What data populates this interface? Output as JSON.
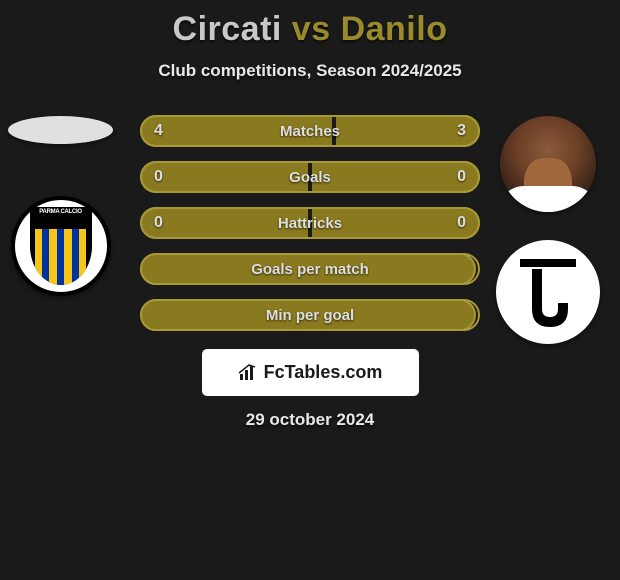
{
  "title": {
    "player1": "Circati",
    "vs": "vs",
    "player2": "Danilo",
    "player1_color": "#c8c8c8",
    "accent_color": "#9a8a2a"
  },
  "subtitle": "Club competitions, Season 2024/2025",
  "date": "29 october 2024",
  "watermark": "FcTables.com",
  "colors": {
    "background": "#1a1a1a",
    "bar_fill": "#8a7a1f",
    "bar_border": "#a89936",
    "text": "#dedede"
  },
  "left": {
    "player_name": "Circati",
    "club_name": "Parma"
  },
  "right": {
    "player_name": "Danilo",
    "club_name": "Juventus"
  },
  "stats": [
    {
      "label": "Matches",
      "left_val": "4",
      "right_val": "3",
      "left_pct": 57,
      "right_pct": 43
    },
    {
      "label": "Goals",
      "left_val": "0",
      "right_val": "0",
      "left_pct": 50,
      "right_pct": 50
    },
    {
      "label": "Hattricks",
      "left_val": "0",
      "right_val": "0",
      "left_pct": 50,
      "right_pct": 50
    },
    {
      "label": "Goals per match",
      "left_val": "",
      "right_val": "",
      "left_pct": 100,
      "right_pct": 0
    },
    {
      "label": "Min per goal",
      "left_val": "",
      "right_val": "",
      "left_pct": 100,
      "right_pct": 0
    }
  ]
}
